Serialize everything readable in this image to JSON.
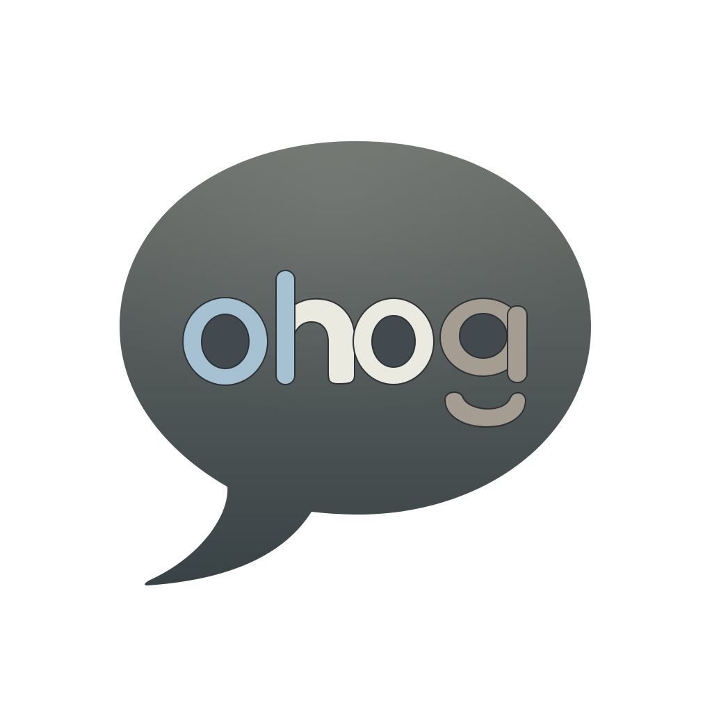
{
  "logo": {
    "wordmark": "ohog",
    "icon": "speech-bubble-icon",
    "colors": {
      "background": "#ffffff",
      "bubble_top": "#6c706b",
      "bubble_bottom": "#394246",
      "letter_o1": "#a6c2d2",
      "letter_h_stem": "#a6c2d2",
      "letter_h_arch": "#ebeae0",
      "letter_o2": "#ebeae0",
      "letter_g": "#a59d91",
      "letter_outline": "#2c3236"
    }
  }
}
